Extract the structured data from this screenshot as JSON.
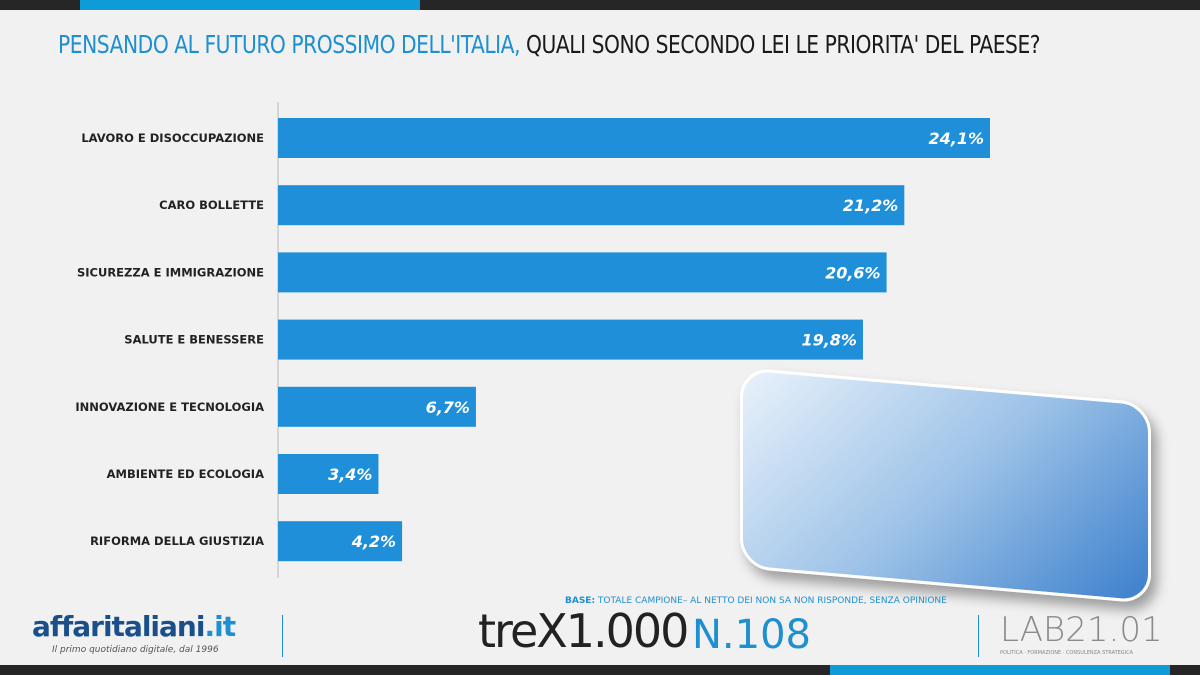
{
  "title": {
    "highlight": "PENSANDO AL FUTURO PROSSIMO DELL'ITALIA,",
    "rest": " QUALI SONO SECONDO LEI LE PRIORITA' DEL PAESE?"
  },
  "chart_data": {
    "type": "bar",
    "orientation": "horizontal",
    "categories": [
      "LAVORO E DISOCCUPAZIONE",
      "CARO BOLLETTE",
      "SICUREZZA E IMMIGRAZIONE",
      "SALUTE E BENESSERE",
      "INNOVAZIONE E TECNOLOGIA",
      "AMBIENTE ED ECOLOGIA",
      "RIFORMA DELLA GIUSTIZIA"
    ],
    "values": [
      24.1,
      21.2,
      20.6,
      19.8,
      6.7,
      3.4,
      4.2
    ],
    "labels": [
      "24,1%",
      "21,2%",
      "20,6%",
      "19,8%",
      "6,7%",
      "3,4%",
      "4,2%"
    ],
    "bar_color": "#1e8fd8",
    "grid": false
  },
  "footer": {
    "base_label": "BASE:",
    "base_text": " TOTALE CAMPIONE– AL NETTO DEI NON SA NON RISPONDE, SENZA OPINIONE",
    "logo1": "affaritaliani",
    "logo1_tld": ".it",
    "logo1_tagline": "Il primo quotidiano digitale, dal 1996",
    "trex": "treX1.000",
    "number": "N.108",
    "lab": "LAB21.01",
    "lab_tagline": "POLITICA · FORMAZIONE · CONSULENZA STRATEGICA"
  }
}
